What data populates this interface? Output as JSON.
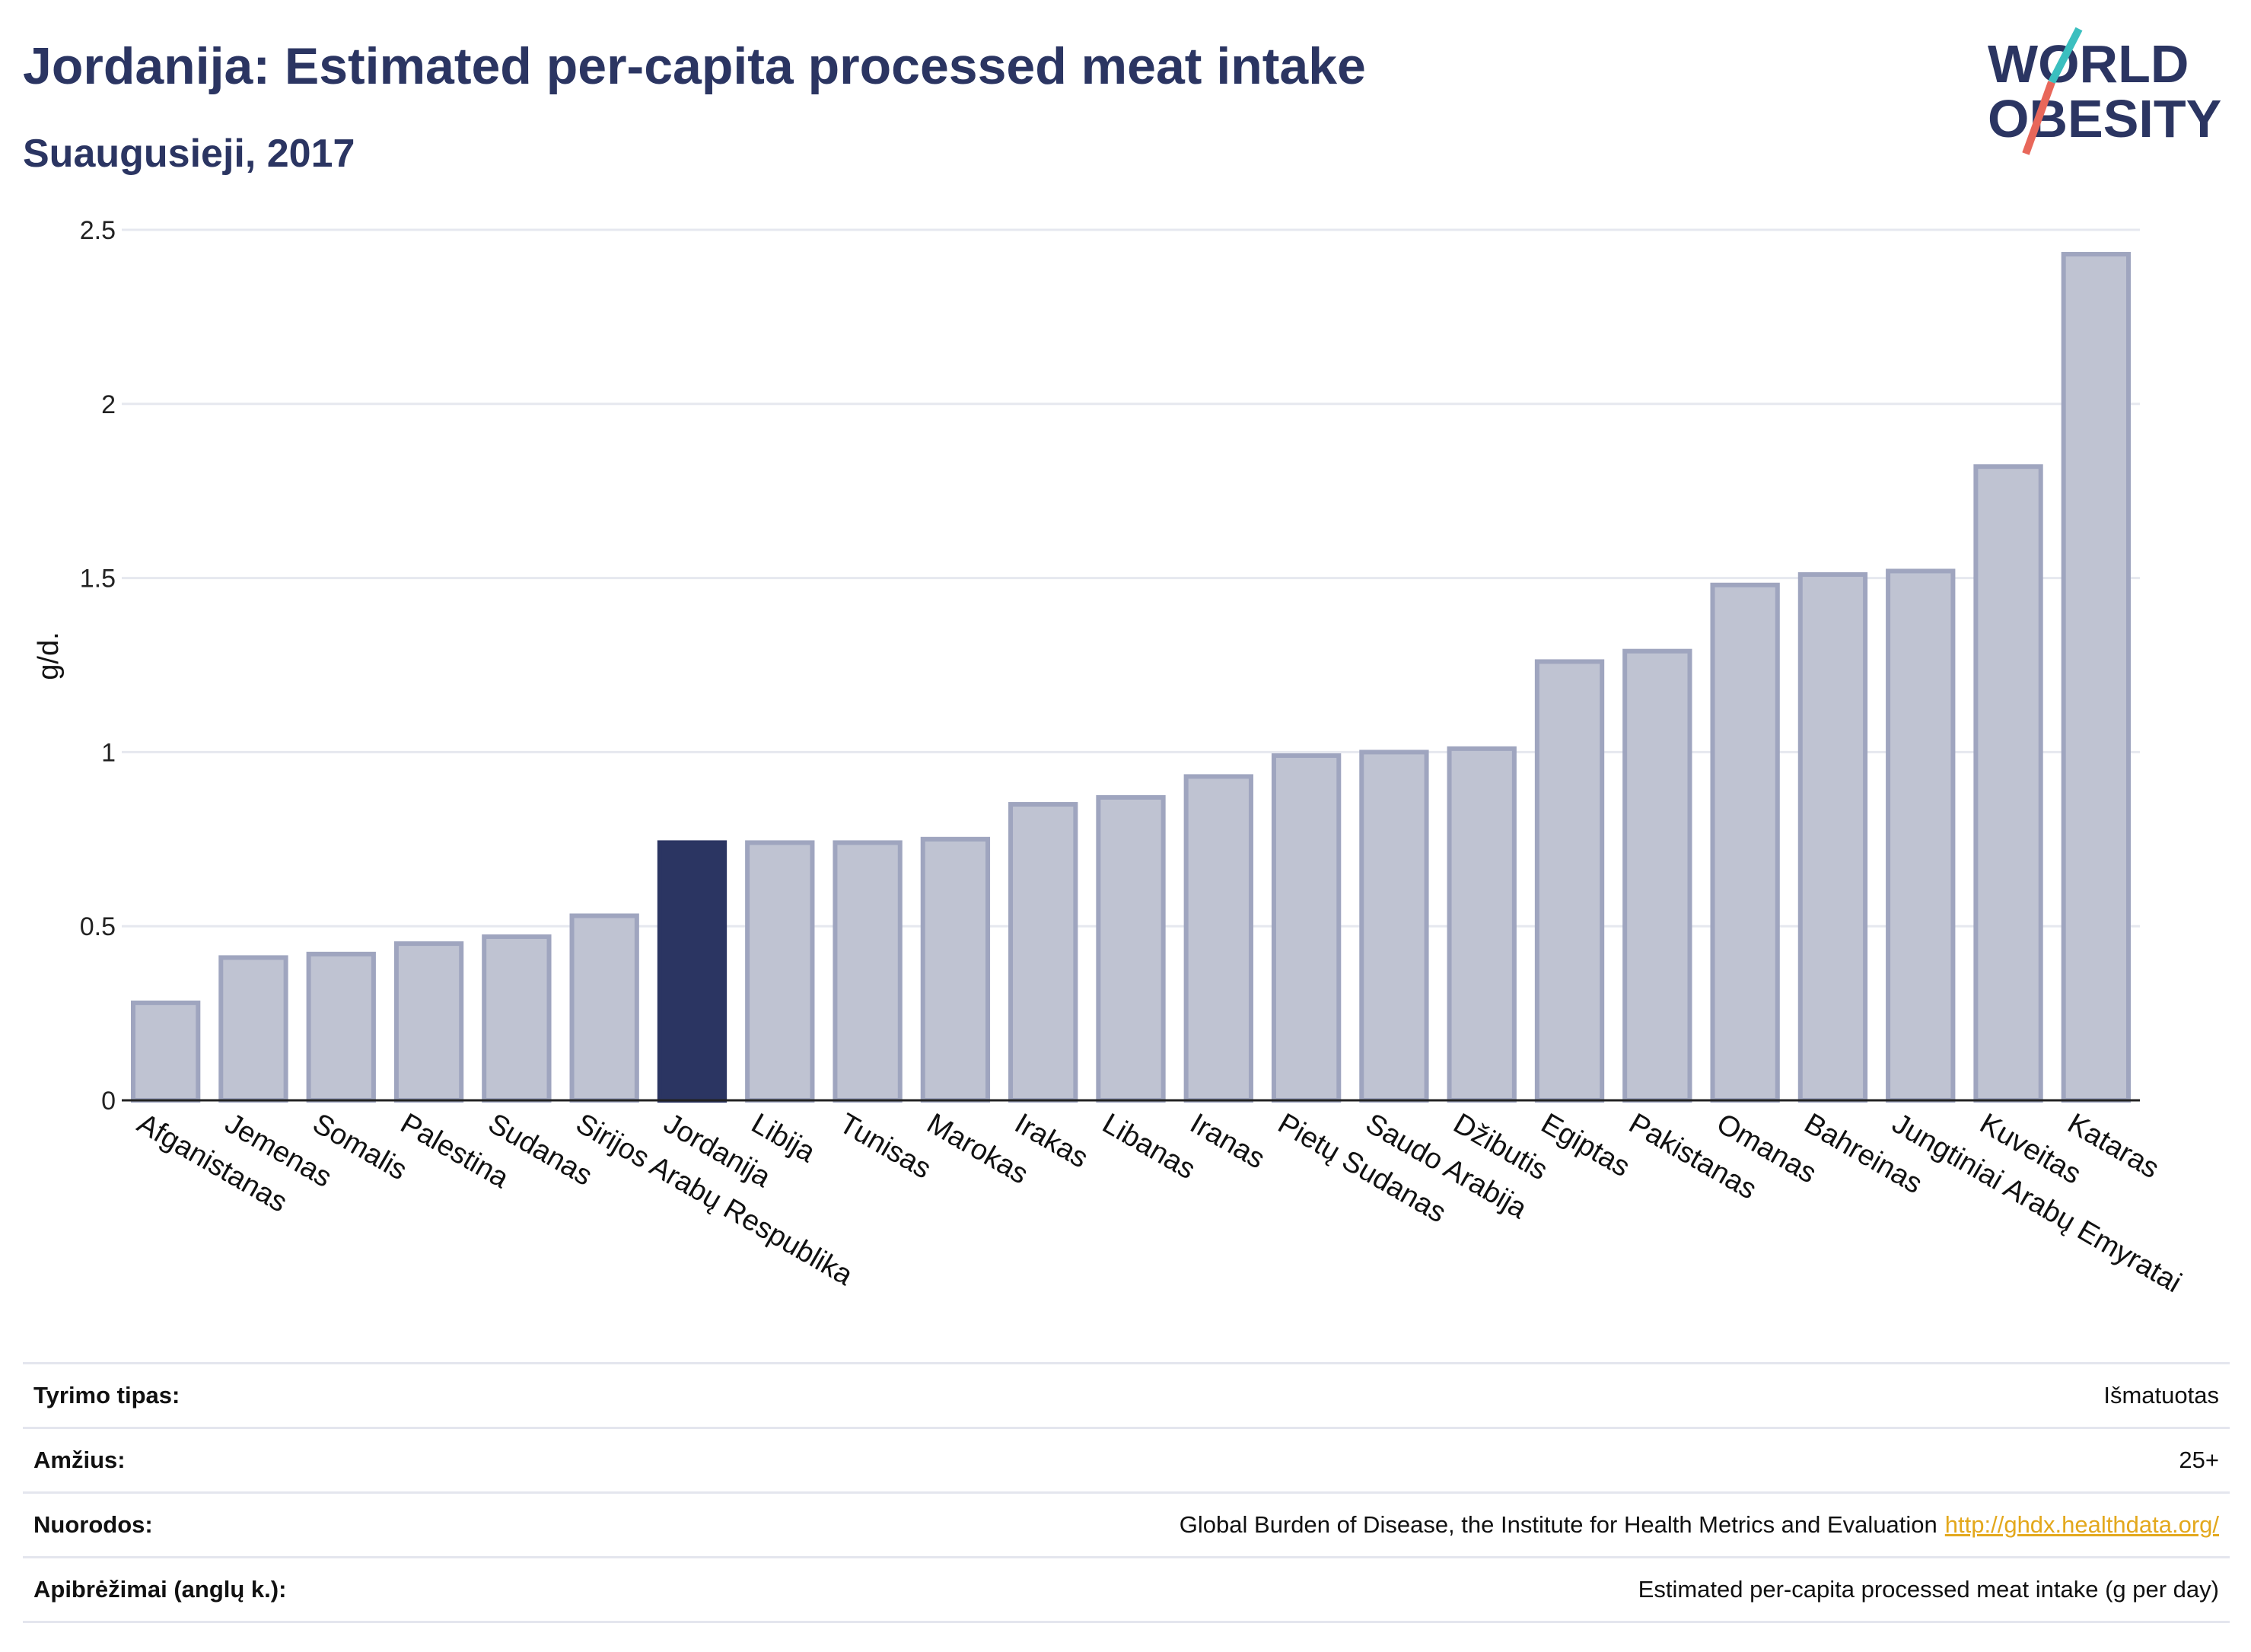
{
  "header": {
    "title": "Jordanija: Estimated per-capita processed meat intake",
    "subtitle": "Suaugusieji, 2017"
  },
  "logo": {
    "line1": "WORLD",
    "line2": "OBESITY",
    "slash_colors": [
      "#3bbfbf",
      "#e8675a"
    ]
  },
  "colors": {
    "bar": "#bfc3d2",
    "bar_border": "#9fa5bf",
    "highlight": "#2b3562",
    "grid": "#e6e8ef",
    "text": "#2b3562"
  },
  "chart_data": {
    "type": "bar",
    "title": "Jordanija: Estimated per-capita processed meat intake",
    "subtitle": "Suaugusieji, 2017",
    "xlabel": "",
    "ylabel": "g/d.",
    "ylim": [
      0,
      2.5
    ],
    "yticks": [
      0,
      0.5,
      1,
      1.5,
      2,
      2.5
    ],
    "ytick_labels": [
      "0",
      "0.5",
      "1",
      "1.5",
      "2",
      "2.5"
    ],
    "grid": true,
    "highlight": "Jordanija",
    "categories": [
      "Afganistanas",
      "Jemenas",
      "Somalis",
      "Palestina",
      "Sudanas",
      "Sirijos Arabų Respublika",
      "Jordanija",
      "Libija",
      "Tunisas",
      "Marokas",
      "Irakas",
      "Libanas",
      "Iranas",
      "Pietų Sudanas",
      "Saudo Arabija",
      "Džibutis",
      "Egiptas",
      "Pakistanas",
      "Omanas",
      "Bahreinas",
      "Jungtiniai Arabų Emyratai",
      "Kuveitas",
      "Kataras"
    ],
    "values": [
      0.28,
      0.41,
      0.42,
      0.45,
      0.47,
      0.53,
      0.74,
      0.74,
      0.74,
      0.75,
      0.85,
      0.87,
      0.93,
      0.99,
      1.0,
      1.01,
      1.26,
      1.29,
      1.48,
      1.51,
      1.52,
      1.82,
      2.43
    ]
  },
  "info": {
    "rows": [
      {
        "label": "Tyrimo tipas:",
        "value": "Išmatuotas"
      },
      {
        "label": "Amžius:",
        "value": "25+"
      },
      {
        "label": "Nuorodos:",
        "value": "Global Burden of Disease, the Institute for Health Metrics and Evaluation",
        "link": "http://ghdx.healthdata.org/"
      },
      {
        "label": "Apibrėžimai (anglų k.):",
        "value": "Estimated per-capita processed meat intake (g per day)"
      }
    ]
  }
}
